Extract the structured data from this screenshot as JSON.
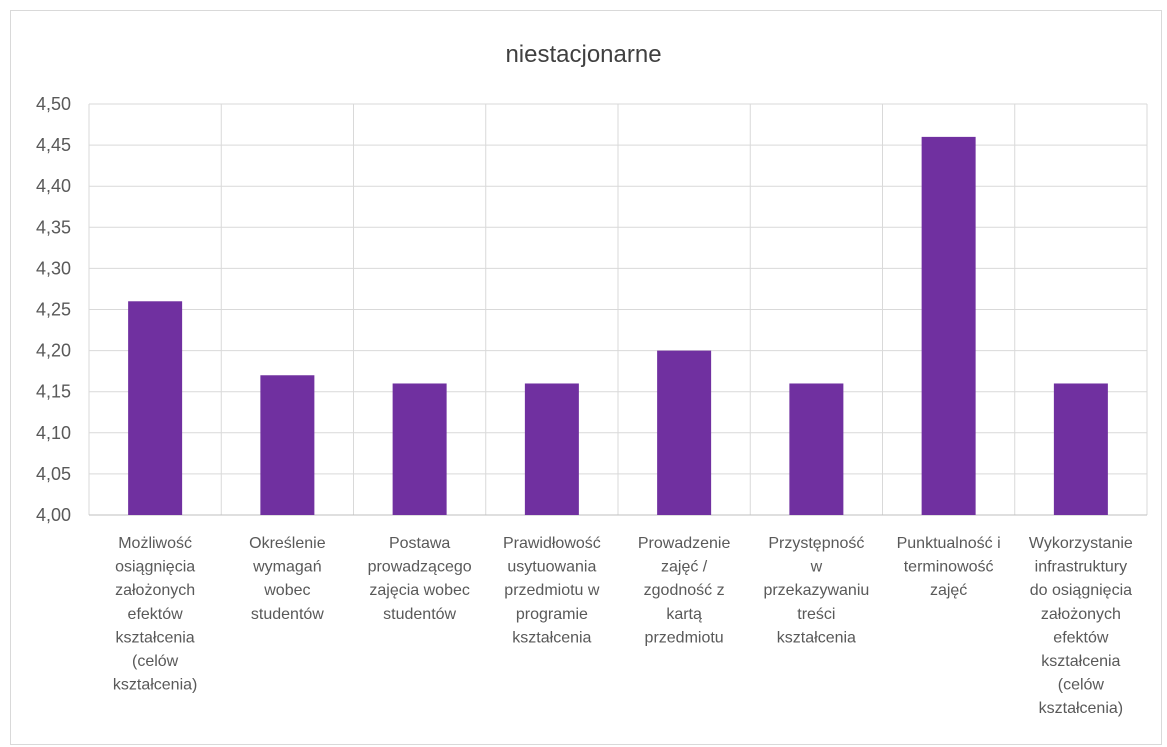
{
  "chart_data": {
    "type": "bar",
    "title": "niestacjonarne",
    "categories": [
      [
        "Możliwość",
        "osiągnięcia",
        "założonych",
        "efektów",
        "kształcenia",
        "(celów",
        "kształcenia)"
      ],
      [
        "Określenie",
        "wymagań",
        "wobec",
        "studentów"
      ],
      [
        "Postawa",
        "prowadzącego",
        "zajęcia wobec",
        "studentów"
      ],
      [
        "Prawidłowość",
        "usytuowania",
        "przedmiotu w",
        "programie",
        "kształcenia"
      ],
      [
        "Prowadzenie",
        "zajęć /",
        "zgodność z",
        "kartą",
        "przedmiotu"
      ],
      [
        "Przystępność",
        "w",
        "przekazywaniu",
        "treści",
        "kształcenia"
      ],
      [
        "Punktualność i",
        "terminowość",
        "zajęć"
      ],
      [
        "Wykorzystanie",
        "infrastruktury",
        "do osiągnięcia",
        "założonych",
        "efektów",
        "kształcenia",
        "(celów",
        "kształcenia)"
      ]
    ],
    "values": [
      4.26,
      4.17,
      4.16,
      4.16,
      4.2,
      4.16,
      4.46,
      4.16
    ],
    "ylim": [
      4.0,
      4.5
    ],
    "yticks": [
      "4,00",
      "4,05",
      "4,10",
      "4,15",
      "4,20",
      "4,25",
      "4,30",
      "4,35",
      "4,40",
      "4,45",
      "4,50"
    ],
    "xlabel": "",
    "ylabel": "",
    "bar_color": "#7030a0",
    "grid": true,
    "legend": "none"
  }
}
